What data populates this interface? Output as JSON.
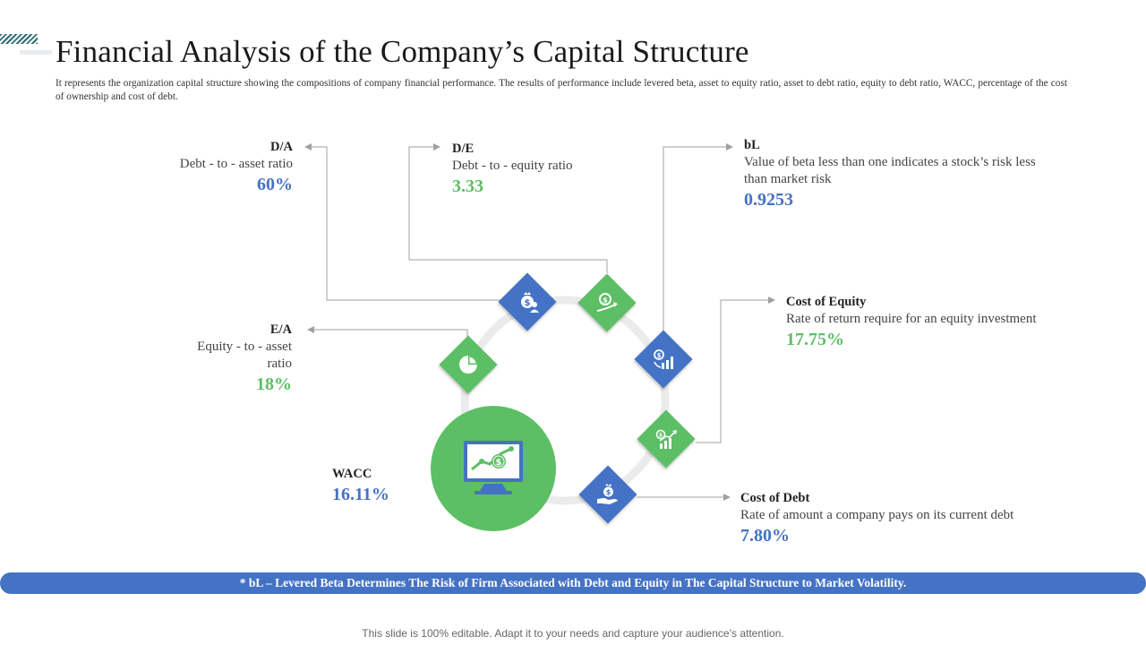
{
  "title": "Financial Analysis of the Company’s Capital Structure",
  "subtitle": "It represents the organization capital structure showing the compositions of company financial performance. The results of performance include levered beta, asset to equity ratio, asset to debt ratio, equity to debt ratio, WACC, percentage of the cost of ownership and cost of debt.",
  "metrics": {
    "da": {
      "label": "D/A",
      "desc": "Debt - to - asset ratio",
      "value": "60%"
    },
    "de": {
      "label": "D/E",
      "desc": "Debt - to - equity ratio",
      "value": "3.33"
    },
    "bl": {
      "label": "bL",
      "desc": "Value of beta less than one indicates a stock’s risk less than market risk",
      "value": "0.9253"
    },
    "coe": {
      "label": "Cost of Equity",
      "desc": "Rate of return require for an equity investment",
      "value": "17.75%"
    },
    "ea": {
      "label": "E/A",
      "desc": "Equity - to - asset ratio",
      "value": "18%"
    },
    "wacc": {
      "label": "WACC",
      "value": "16.11%"
    },
    "cod": {
      "label": "Cost of Debt",
      "desc": "Rate of amount a company pays on its current debt",
      "value": "7.80%"
    }
  },
  "icons": [
    "money-bag-person-icon",
    "coin-growth-icon",
    "money-chart-icon",
    "pie-chart-icon",
    "growth-chart-icon",
    "money-hand-icon",
    "monitor-dollar-icon"
  ],
  "colors": {
    "blue": "#4472c4",
    "green": "#5cbf65",
    "ring": "#ebebeb"
  },
  "banner": "* bL – Levered Beta Determines The Risk of Firm Associated with Debt and Equity in The Capital Structure to Market Volatility.",
  "footer": "This slide is 100% editable. Adapt it to your needs and capture your audience’s attention."
}
